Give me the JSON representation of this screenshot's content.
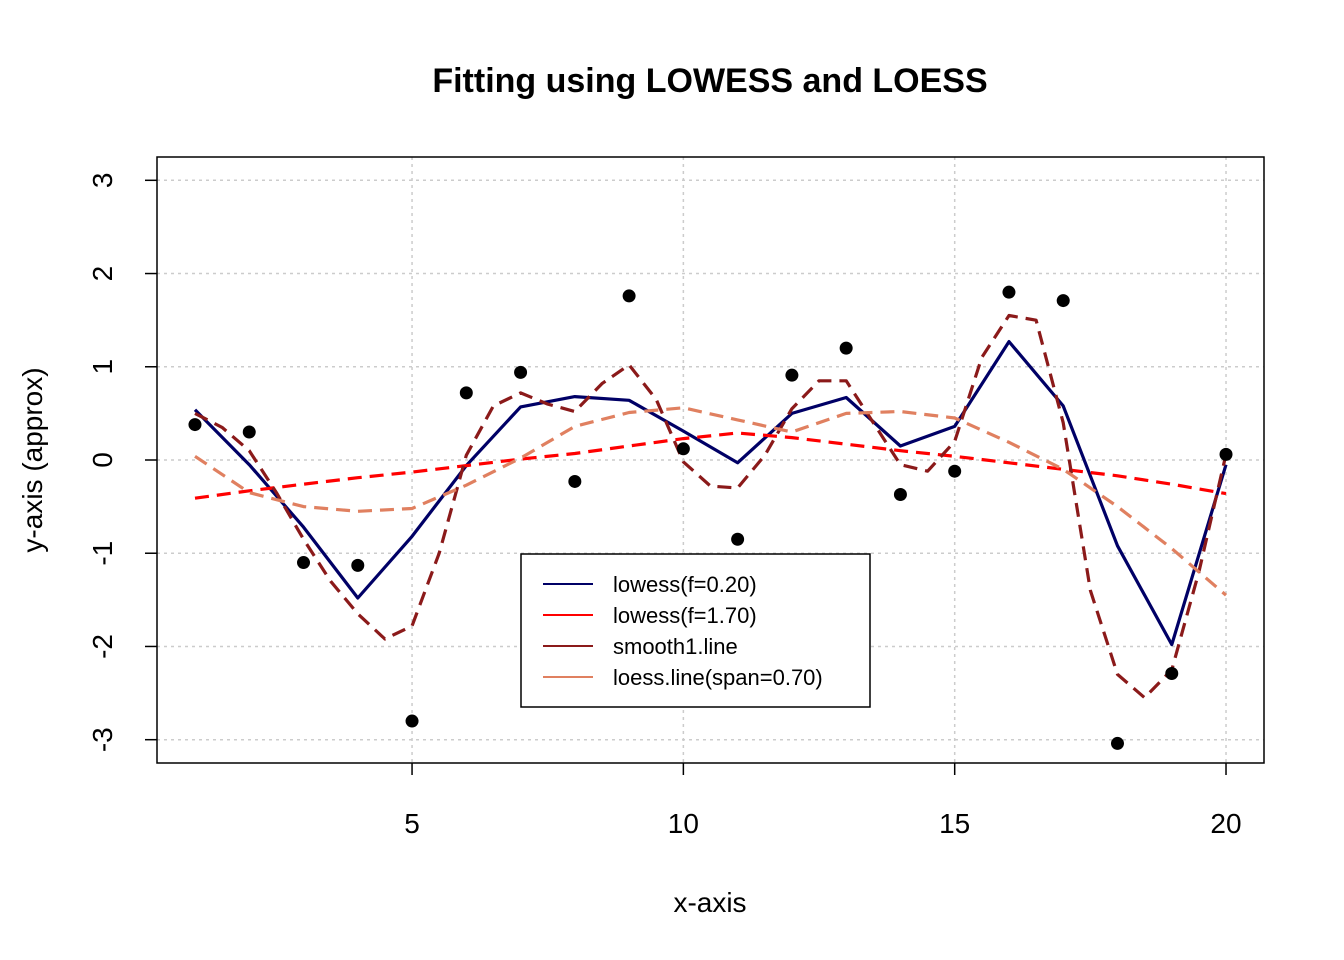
{
  "chart_data": {
    "type": "scatter",
    "title": "Fitting using LOWESS and LOESS",
    "xlabel": "x-axis",
    "ylabel": "y-axis (approx)",
    "xlim": [
      0.3,
      20.7
    ],
    "ylim": [
      -3.25,
      3.25
    ],
    "xticks": [
      5,
      10,
      15,
      20
    ],
    "yticks": [
      -3,
      -2,
      -1,
      0,
      1,
      2,
      3
    ],
    "grid": true,
    "legend_position": "center-bottom",
    "points": {
      "x": [
        1,
        2,
        3,
        4,
        5,
        6,
        7,
        8,
        9,
        10,
        11,
        12,
        13,
        14,
        15,
        16,
        17,
        18,
        19,
        20
      ],
      "y": [
        0.38,
        0.3,
        -1.1,
        -1.13,
        -2.8,
        0.72,
        0.94,
        -0.23,
        1.76,
        0.12,
        -0.85,
        0.91,
        1.2,
        -0.37,
        -0.12,
        1.8,
        1.71,
        -3.04,
        -2.29,
        0.06
      ],
      "color": "#000000"
    },
    "series": [
      {
        "name": "lowess(f=0.20)",
        "color": "#000066",
        "dash": "solid",
        "x": [
          1,
          2,
          3,
          4,
          5,
          6,
          7,
          8,
          9,
          10,
          11,
          12,
          13,
          14,
          15,
          16,
          17,
          18,
          19,
          20
        ],
        "y": [
          0.54,
          -0.05,
          -0.72,
          -1.48,
          -0.82,
          -0.06,
          0.57,
          0.68,
          0.64,
          0.31,
          -0.03,
          0.5,
          0.67,
          0.15,
          0.36,
          1.27,
          0.58,
          -0.92,
          -1.98,
          -0.05
        ]
      },
      {
        "name": "lowess(f=1.70)",
        "color": "#ff0000",
        "dash": "dashed",
        "x": [
          1,
          2,
          3,
          4,
          5,
          6,
          7,
          8,
          9,
          10,
          11,
          12,
          13,
          14,
          15,
          16,
          17,
          18,
          19,
          20
        ],
        "y": [
          -0.41,
          -0.33,
          -0.26,
          -0.19,
          -0.13,
          -0.06,
          0.01,
          0.07,
          0.15,
          0.23,
          0.29,
          0.24,
          0.17,
          0.1,
          0.04,
          -0.03,
          -0.1,
          -0.17,
          -0.26,
          -0.36
        ]
      },
      {
        "name": "smooth1.line",
        "color": "#8b1a1a",
        "dash": "dashed",
        "x": [
          1,
          1.5,
          2,
          2.5,
          3,
          3.5,
          4,
          4.5,
          5,
          5.5,
          6,
          6.5,
          7,
          7.5,
          8,
          8.5,
          9,
          9.5,
          10,
          10.5,
          11,
          11.5,
          12,
          12.5,
          13,
          13.5,
          14,
          14.5,
          15,
          15.5,
          16,
          16.5,
          17,
          17.5,
          18,
          18.5,
          19,
          19.5,
          20
        ],
        "y": [
          0.5,
          0.35,
          0.1,
          -0.35,
          -0.85,
          -1.3,
          -1.65,
          -1.92,
          -1.78,
          -1.0,
          0.05,
          0.58,
          0.72,
          0.6,
          0.52,
          0.82,
          1.02,
          0.65,
          -0.02,
          -0.28,
          -0.3,
          0.05,
          0.55,
          0.85,
          0.85,
          0.4,
          -0.05,
          -0.12,
          0.2,
          1.1,
          1.55,
          1.5,
          0.4,
          -1.4,
          -2.3,
          -2.55,
          -2.25,
          -1.2,
          0.06
        ]
      },
      {
        "name": "loess.line(span=0.70)",
        "color": "#e08060",
        "dash": "dashed",
        "x": [
          1,
          2,
          3,
          4,
          5,
          6,
          7,
          8,
          9,
          10,
          11,
          12,
          13,
          14,
          15,
          16,
          17,
          18,
          19,
          20
        ],
        "y": [
          0.04,
          -0.35,
          -0.5,
          -0.55,
          -0.52,
          -0.27,
          0.02,
          0.36,
          0.51,
          0.56,
          0.43,
          0.3,
          0.5,
          0.52,
          0.45,
          0.19,
          -0.1,
          -0.5,
          -0.95,
          -1.45
        ]
      }
    ]
  }
}
